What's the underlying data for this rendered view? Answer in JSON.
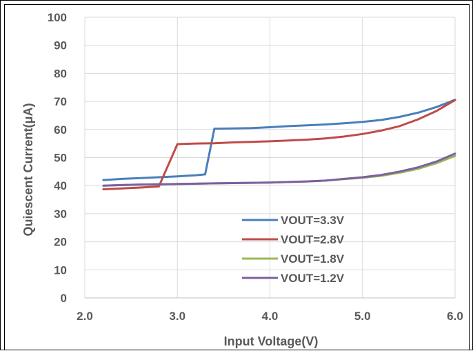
{
  "chart_data": {
    "type": "line",
    "xlabel": "Input Voltage(V)",
    "ylabel": "Quiescent Current(μA)",
    "xlim": [
      2.0,
      6.0
    ],
    "ylim": [
      0,
      100
    ],
    "xticks": [
      "2.0",
      "3.0",
      "4.0",
      "5.0",
      "6.0"
    ],
    "yticks": [
      "0",
      "10",
      "20",
      "30",
      "40",
      "50",
      "60",
      "70",
      "80",
      "90",
      "100"
    ],
    "grid": true,
    "legend_position": "bottom-center",
    "series": [
      {
        "name": "VOUT=3.3V",
        "color": "#4a7ebb",
        "points": [
          [
            2.2,
            42
          ],
          [
            2.4,
            42.4
          ],
          [
            2.6,
            42.7
          ],
          [
            2.8,
            43
          ],
          [
            3.0,
            43.3
          ],
          [
            3.2,
            43.7
          ],
          [
            3.3,
            44
          ],
          [
            3.4,
            60.3
          ],
          [
            3.6,
            60.4
          ],
          [
            3.8,
            60.5
          ],
          [
            4.0,
            60.8
          ],
          [
            4.2,
            61.2
          ],
          [
            4.4,
            61.5
          ],
          [
            4.6,
            61.8
          ],
          [
            4.8,
            62.2
          ],
          [
            5.0,
            62.7
          ],
          [
            5.2,
            63.4
          ],
          [
            5.4,
            64.5
          ],
          [
            5.6,
            66
          ],
          [
            5.8,
            68
          ],
          [
            6.0,
            70.6
          ]
        ]
      },
      {
        "name": "VOUT=2.8V",
        "color": "#be4b48",
        "points": [
          [
            2.2,
            38.7
          ],
          [
            2.4,
            39
          ],
          [
            2.6,
            39.3
          ],
          [
            2.8,
            39.7
          ],
          [
            3.0,
            54.8
          ],
          [
            3.2,
            55
          ],
          [
            3.4,
            55.1
          ],
          [
            3.6,
            55.4
          ],
          [
            3.8,
            55.6
          ],
          [
            4.0,
            55.8
          ],
          [
            4.2,
            56.1
          ],
          [
            4.4,
            56.4
          ],
          [
            4.6,
            56.8
          ],
          [
            4.8,
            57.5
          ],
          [
            5.0,
            58.4
          ],
          [
            5.2,
            59.6
          ],
          [
            5.4,
            61.2
          ],
          [
            5.6,
            63.6
          ],
          [
            5.8,
            66.6
          ],
          [
            6.0,
            70.5
          ]
        ]
      },
      {
        "name": "VOUT=1.8V",
        "color": "#98b954",
        "points": [
          [
            2.2,
            40
          ],
          [
            2.4,
            40.2
          ],
          [
            2.6,
            40.4
          ],
          [
            2.8,
            40.5
          ],
          [
            3.0,
            40.6
          ],
          [
            3.2,
            40.7
          ],
          [
            3.4,
            40.8
          ],
          [
            3.6,
            40.9
          ],
          [
            3.8,
            41
          ],
          [
            4.0,
            41.1
          ],
          [
            4.2,
            41.3
          ],
          [
            4.4,
            41.5
          ],
          [
            4.6,
            41.8
          ],
          [
            4.8,
            42.3
          ],
          [
            5.0,
            42.8
          ],
          [
            5.2,
            43.5
          ],
          [
            5.4,
            44.6
          ],
          [
            5.6,
            46
          ],
          [
            5.8,
            48
          ],
          [
            6.0,
            50.6
          ]
        ]
      },
      {
        "name": "VOUT=1.2V",
        "color": "#7d60a0",
        "points": [
          [
            2.2,
            40
          ],
          [
            2.4,
            40.2
          ],
          [
            2.6,
            40.4
          ],
          [
            2.8,
            40.5
          ],
          [
            3.0,
            40.6
          ],
          [
            3.2,
            40.7
          ],
          [
            3.4,
            40.8
          ],
          [
            3.6,
            40.9
          ],
          [
            3.8,
            41
          ],
          [
            4.0,
            41.1
          ],
          [
            4.2,
            41.3
          ],
          [
            4.4,
            41.5
          ],
          [
            4.6,
            41.8
          ],
          [
            4.8,
            42.4
          ],
          [
            5.0,
            43
          ],
          [
            5.2,
            43.8
          ],
          [
            5.4,
            45
          ],
          [
            5.6,
            46.5
          ],
          [
            5.8,
            48.6
          ],
          [
            6.0,
            51.4
          ]
        ]
      }
    ]
  }
}
